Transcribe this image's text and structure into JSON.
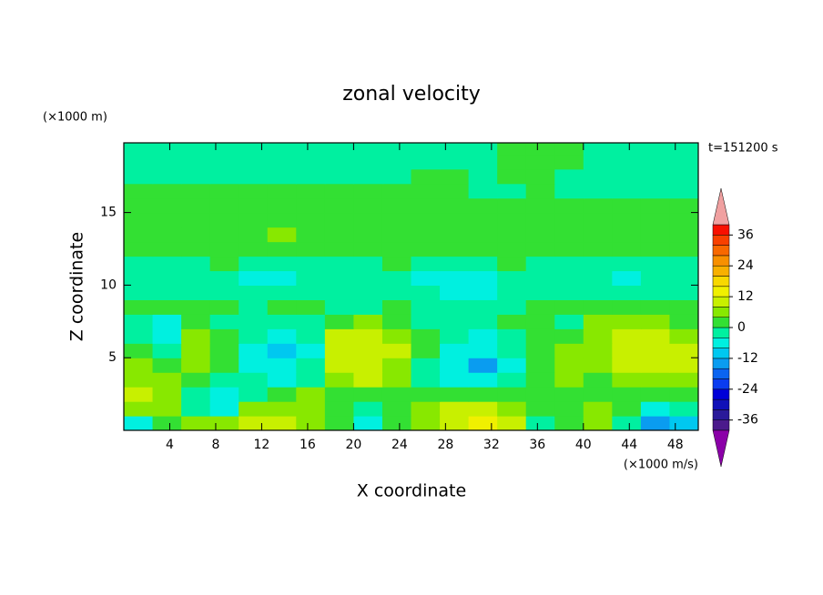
{
  "chart_data": {
    "type": "contour",
    "title": "zonal velocity",
    "xlabel": "X coordinate",
    "ylabel": "Z coordinate",
    "y_units": "(×1000 m)",
    "x_units": "(×1000 m/s)",
    "annotation": "t=151200 s",
    "xlim": [
      0,
      50
    ],
    "ylim": [
      0,
      19.8
    ],
    "xticks": [
      4,
      8,
      12,
      16,
      20,
      24,
      28,
      32,
      36,
      40,
      44,
      48
    ],
    "yticks": [
      5,
      10,
      15
    ],
    "x": [
      1.25,
      3.75,
      6.25,
      8.75,
      11.25,
      13.75,
      16.25,
      18.75,
      21.25,
      23.75,
      26.25,
      28.75,
      31.25,
      33.75,
      36.25,
      38.75,
      41.25,
      43.75,
      46.25,
      48.75
    ],
    "y": [
      0.5,
      1.5,
      2.5,
      3.5,
      4.5,
      5.5,
      6.5,
      7.5,
      8.5,
      9.5,
      10.5,
      11.5,
      12.5,
      13.5,
      14.5,
      15.5,
      16.5,
      17.5,
      18.5,
      19.5
    ],
    "z": [
      [
        -6,
        2,
        6,
        4,
        8,
        10,
        6,
        2,
        -6,
        2,
        6,
        10,
        14,
        10,
        -4,
        2,
        6,
        -2,
        -14,
        -10
      ],
      [
        6,
        4,
        -2,
        -6,
        4,
        6,
        4,
        2,
        -2,
        2,
        6,
        8,
        10,
        6,
        2,
        2,
        4,
        2,
        -6,
        -4
      ],
      [
        8,
        6,
        -4,
        -8,
        -2,
        2,
        4,
        2,
        2,
        2,
        2,
        2,
        2,
        2,
        2,
        2,
        2,
        2,
        2,
        2
      ],
      [
        6,
        6,
        2,
        -2,
        -4,
        -6,
        -2,
        6,
        8,
        4,
        -2,
        -6,
        -6,
        -2,
        2,
        4,
        2,
        6,
        6,
        6
      ],
      [
        4,
        2,
        6,
        2,
        -6,
        -8,
        -4,
        8,
        10,
        6,
        -2,
        -8,
        -14,
        -6,
        2,
        4,
        4,
        8,
        10,
        8
      ],
      [
        2,
        -2,
        6,
        2,
        -6,
        -10,
        -6,
        8,
        10,
        8,
        2,
        -6,
        -8,
        -4,
        2,
        4,
        6,
        10,
        10,
        8
      ],
      [
        -2,
        -6,
        4,
        2,
        -4,
        -8,
        -4,
        8,
        8,
        4,
        2,
        -4,
        -6,
        -2,
        2,
        2,
        6,
        10,
        8,
        6
      ],
      [
        -4,
        -6,
        2,
        -2,
        -2,
        -4,
        -2,
        2,
        4,
        2,
        -2,
        -2,
        -2,
        2,
        2,
        -2,
        4,
        6,
        4,
        2
      ],
      [
        2,
        2,
        2,
        2,
        -2,
        2,
        2,
        -2,
        -2,
        2,
        -2,
        -2,
        -2,
        -2,
        2,
        2,
        2,
        2,
        2,
        2
      ],
      [
        -2,
        -2,
        -2,
        -2,
        -2,
        -2,
        -2,
        -2,
        -2,
        -2,
        -2,
        -6,
        -6,
        -2,
        -2,
        -2,
        -2,
        -2,
        -2,
        -2
      ],
      [
        -2,
        -2,
        -2,
        -2,
        -6,
        -6,
        -2,
        -2,
        -2,
        -2,
        -6,
        -6,
        -6,
        -2,
        -2,
        -2,
        -2,
        -6,
        -2,
        -2
      ],
      [
        -2,
        -2,
        -2,
        2,
        -2,
        -2,
        -2,
        -2,
        -2,
        2,
        -2,
        -2,
        -2,
        2,
        -2,
        -2,
        -2,
        -2,
        -2,
        -2
      ],
      [
        2,
        2,
        2,
        2,
        2,
        2,
        2,
        2,
        2,
        2,
        2,
        2,
        2,
        2,
        2,
        2,
        2,
        2,
        2,
        2
      ],
      [
        2,
        2,
        2,
        2,
        2,
        6,
        2,
        2,
        2,
        2,
        2,
        2,
        2,
        2,
        2,
        2,
        2,
        2,
        2,
        2
      ],
      [
        2,
        2,
        2,
        2,
        2,
        2,
        2,
        2,
        2,
        2,
        2,
        2,
        2,
        2,
        2,
        2,
        2,
        2,
        2,
        2
      ],
      [
        2,
        2,
        2,
        2,
        2,
        2,
        2,
        2,
        2,
        2,
        2,
        2,
        2,
        2,
        2,
        2,
        2,
        2,
        2,
        2
      ],
      [
        2,
        2,
        2,
        2,
        2,
        2,
        2,
        2,
        2,
        2,
        2,
        2,
        -2,
        -2,
        2,
        -2,
        -2,
        -2,
        -2,
        -2
      ],
      [
        -2,
        -2,
        -2,
        -2,
        -2,
        -2,
        -2,
        -2,
        -2,
        -2,
        2,
        2,
        -2,
        2,
        2,
        -2,
        -2,
        -2,
        -2,
        -2
      ],
      [
        -2,
        -2,
        -2,
        -2,
        -2,
        -2,
        -2,
        -2,
        -2,
        -2,
        -2,
        -2,
        -2,
        2,
        2,
        2,
        -2,
        -2,
        -2,
        -2
      ],
      [
        -2,
        -2,
        -2,
        -2,
        -2,
        -2,
        -2,
        -2,
        -2,
        -2,
        -2,
        -2,
        -2,
        2,
        2,
        2,
        -2,
        -2,
        -2,
        -2
      ]
    ],
    "colorbar": {
      "levels": [
        -40,
        -36,
        -32,
        -28,
        -24,
        -20,
        -16,
        -12,
        -8,
        -4,
        0,
        4,
        8,
        12,
        16,
        20,
        24,
        28,
        32,
        36,
        40
      ],
      "colors": [
        "#4b1a8c",
        "#2a1a9a",
        "#1010b8",
        "#0000d8",
        "#0a3cf0",
        "#0a64f0",
        "#0a9cf0",
        "#00c8f0",
        "#00f0e0",
        "#00f0a0",
        "#33e033",
        "#88e800",
        "#c8f000",
        "#f0f000",
        "#f8d800",
        "#f8b000",
        "#f89000",
        "#f86800",
        "#f84000",
        "#f81000"
      ],
      "under_color": "#8b00a8",
      "over_color": "#f0a0a0",
      "ticks": [
        -36,
        -24,
        -12,
        0,
        12,
        24,
        36
      ]
    }
  }
}
